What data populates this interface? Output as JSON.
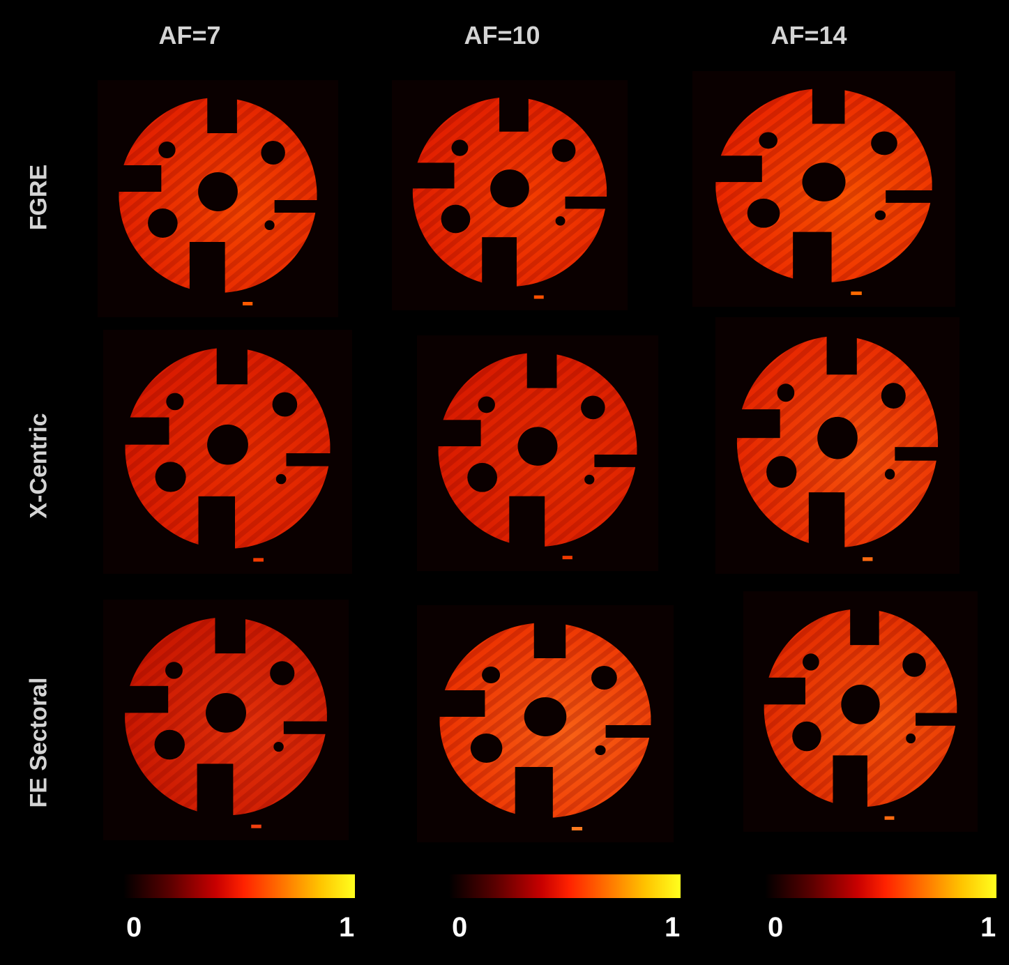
{
  "columns": [
    {
      "label": "AF=7"
    },
    {
      "label": "AF=10"
    },
    {
      "label": "AF=14"
    }
  ],
  "rows": [
    {
      "label": "FGRE"
    },
    {
      "label": "X-Centric"
    },
    {
      "label": "FE Sectoral"
    }
  ],
  "panels": [
    {
      "row": 0,
      "col": 0,
      "base": "#e21f00",
      "hi": "#ff5a00"
    },
    {
      "row": 0,
      "col": 1,
      "base": "#e01d00",
      "hi": "#ff5000"
    },
    {
      "row": 0,
      "col": 2,
      "base": "#ea2400",
      "hi": "#ff6a00"
    },
    {
      "row": 1,
      "col": 0,
      "base": "#d81a00",
      "hi": "#f23a00"
    },
    {
      "row": 1,
      "col": 1,
      "base": "#d81a00",
      "hi": "#f03a00"
    },
    {
      "row": 1,
      "col": 2,
      "base": "#e62500",
      "hi": "#ff6a10"
    },
    {
      "row": 2,
      "col": 0,
      "base": "#c81600",
      "hi": "#f04010"
    },
    {
      "row": 2,
      "col": 1,
      "base": "#ec3000",
      "hi": "#ff7a20"
    },
    {
      "row": 2,
      "col": 2,
      "base": "#e22a00",
      "hi": "#ff6a10"
    }
  ],
  "colorbar": {
    "min_label": "0",
    "max_label": "1",
    "min": 0,
    "max": 1,
    "colormap": "hot"
  }
}
